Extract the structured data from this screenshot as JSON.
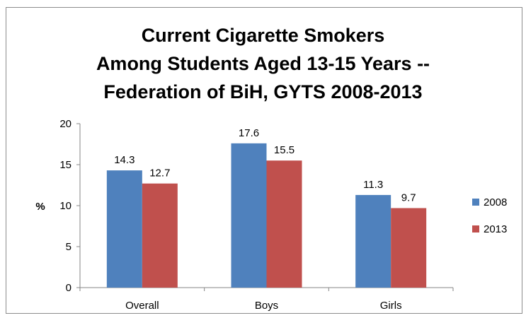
{
  "chart_data": {
    "type": "bar",
    "title_lines": [
      "Current Cigarette Smokers",
      "Among Students Aged 13-15 Years --",
      "Federation of BiH, GYTS 2008-2013"
    ],
    "ylabel": "%",
    "xlabel": "",
    "categories": [
      "Overall",
      "Boys",
      "Girls"
    ],
    "series": [
      {
        "name": "2008",
        "values": [
          14.3,
          17.6,
          11.3
        ],
        "color": "#4f81bd"
      },
      {
        "name": "2013",
        "values": [
          12.7,
          15.5,
          9.7
        ],
        "color": "#c0504d"
      }
    ],
    "data_labels": [
      [
        "14.3",
        "17.6",
        "11.3"
      ],
      [
        "12.7",
        "15.5",
        "9.7"
      ]
    ],
    "ylim": [
      0,
      20
    ],
    "yticks": [
      "0",
      "5",
      "10",
      "15",
      "20"
    ],
    "grid": false,
    "legend_position": "right"
  }
}
